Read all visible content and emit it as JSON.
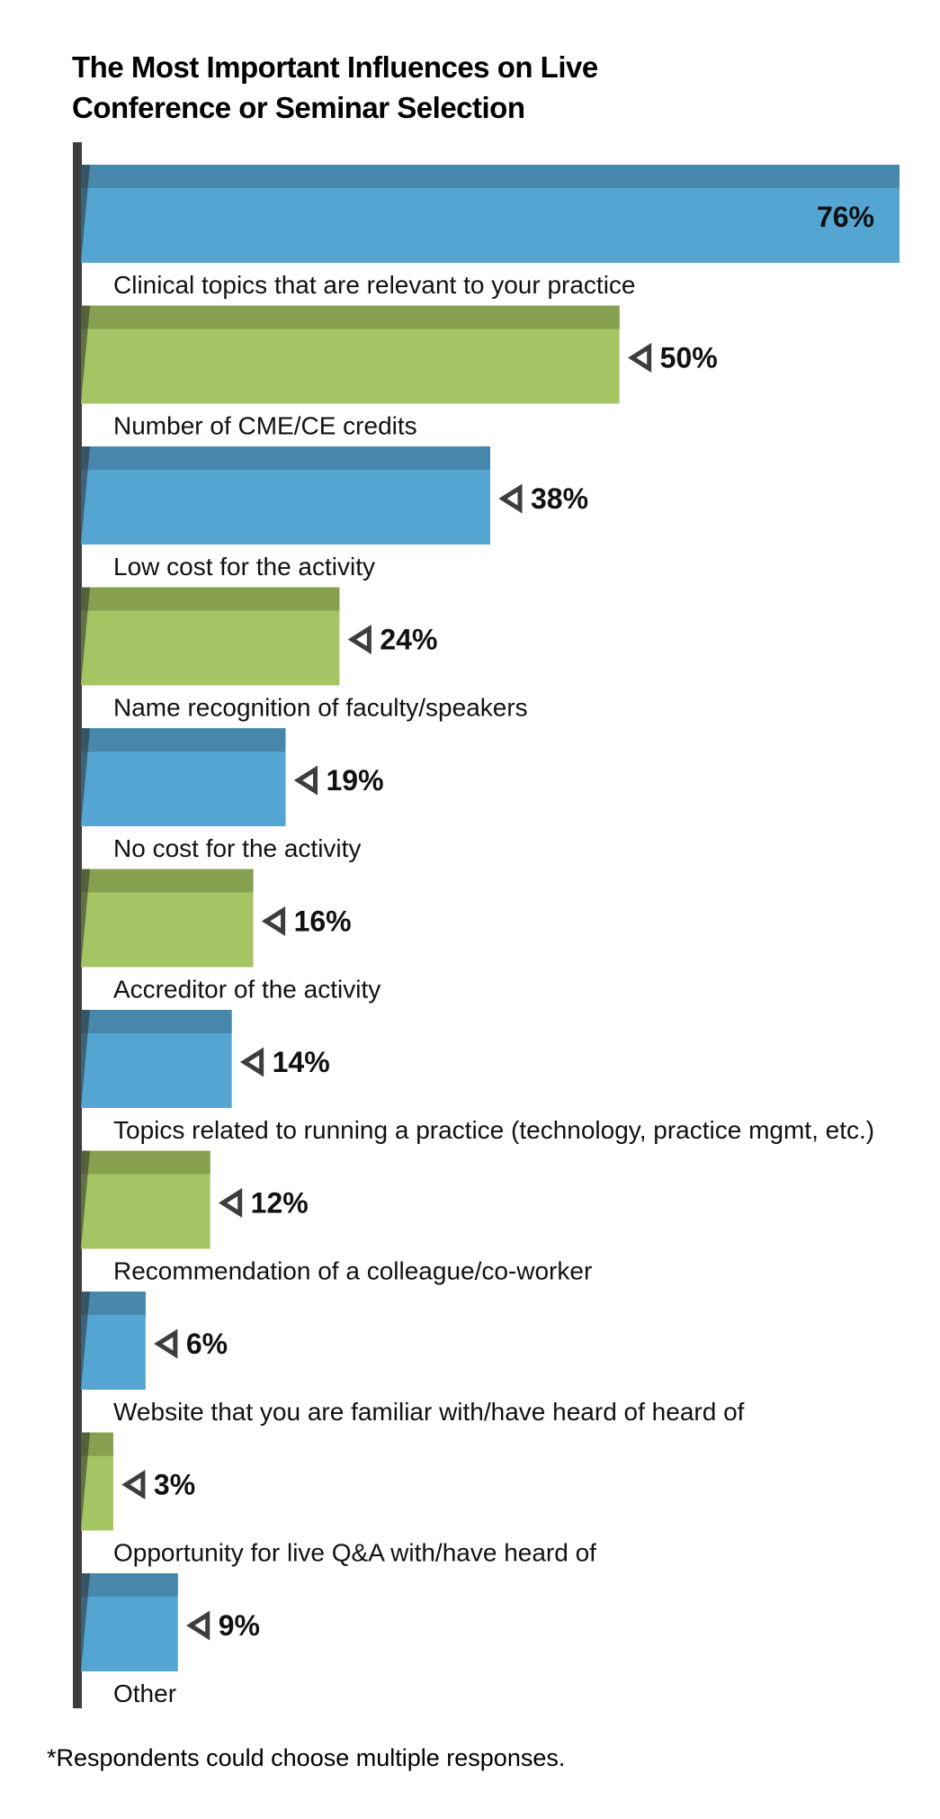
{
  "chart_data": {
    "type": "bar",
    "orientation": "horizontal",
    "title_lines": [
      "The Most Important Influences on Live",
      "Conference or Seminar Selection"
    ],
    "categories": [
      "Clinical topics that are relevant to your practice",
      "Number of CME/CE credits",
      "Low cost for the activity",
      "Name recognition of faculty/speakers",
      "No cost for the activity",
      "Accreditor of the activity",
      "Topics related to running a practice (technology, practice mgmt, etc.)",
      "Recommendation of a colleague/co-worker",
      "Website that you are familiar with/have heard of heard of",
      "Opportunity for live Q&A with/have heard of",
      "Other"
    ],
    "values": [
      76,
      50,
      38,
      24,
      19,
      16,
      14,
      12,
      6,
      3,
      9
    ],
    "value_labels": [
      "76%",
      "50%",
      "38%",
      "24%",
      "19%",
      "16%",
      "14%",
      "12%",
      "6%",
      "3%",
      "9%"
    ],
    "xlim": [
      0,
      76
    ],
    "grid": false,
    "legend": "none",
    "colors": {
      "blue": "#55a5d2",
      "blue_top": "#4687ab",
      "green": "#a4c563",
      "green_top": "#86a04f",
      "axis": "#3d3d3d",
      "arrow": "#3d3d3d"
    },
    "footnote": "*Respondents could choose multiple responses."
  }
}
